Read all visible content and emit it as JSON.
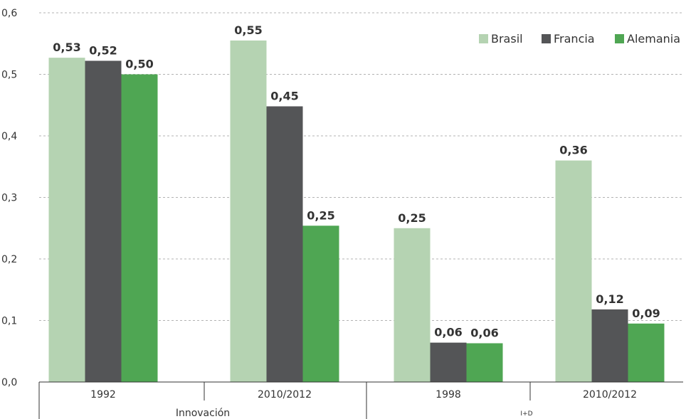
{
  "chart_data": {
    "type": "bar",
    "ylim": [
      0,
      0.6
    ],
    "y_ticks": [
      "0,0",
      "0,1",
      "0,2",
      "0,3",
      "0,4",
      "0,5",
      "0,6"
    ],
    "grid": "dashed horizontal",
    "legend_position": "top-right",
    "groups": [
      {
        "label": "Innovación",
        "categories": [
          "1992",
          "2010/2012"
        ]
      },
      {
        "label": "I+D",
        "categories": [
          "1998",
          "2010/2012"
        ]
      }
    ],
    "categories": [
      "1992",
      "2010/2012",
      "1998",
      "2010/2012"
    ],
    "series": [
      {
        "name": "Brasil",
        "color": "#b5d3b2",
        "values": [
          0.527,
          0.555,
          0.25,
          0.36
        ],
        "labels": [
          "0,53",
          "0,55",
          "0,25",
          "0,36"
        ]
      },
      {
        "name": "Francia",
        "color": "#545557",
        "values": [
          0.522,
          0.448,
          0.064,
          0.118
        ],
        "labels": [
          "0,52",
          "0,45",
          "0,06",
          "0,12"
        ]
      },
      {
        "name": "Alemania",
        "color": "#4fa653",
        "values": [
          0.5,
          0.254,
          0.063,
          0.095
        ],
        "labels": [
          "0,50",
          "0,25",
          "0,06",
          "0,09"
        ]
      }
    ]
  }
}
